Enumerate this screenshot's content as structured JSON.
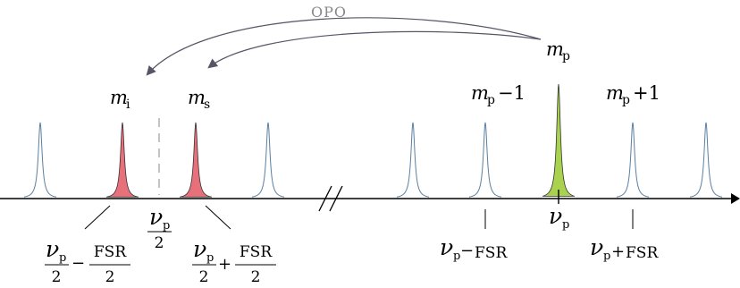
{
  "process_label": "OPO",
  "mode_labels": {
    "pump": "m",
    "pump_sub": "p",
    "idler": "m",
    "idler_sub": "i",
    "signal": "m",
    "signal_sub": "s",
    "pump_minus": "m",
    "pump_minus_sub": "p",
    "pump_minus_suffix": "−1",
    "pump_plus": "m",
    "pump_plus_sub": "p",
    "pump_plus_suffix": "+1"
  },
  "freq_labels": {
    "nu": "ν",
    "p": "p",
    "two": "2",
    "fsr": "FSR",
    "minus": "−",
    "plus": "+"
  },
  "colors": {
    "comb_line": "#5a7fa0",
    "idler_fill": "#e8707a",
    "signal_fill": "#e8707a",
    "pump_fill": "#a9d24f",
    "arrow": "#555566",
    "axis": "#000000"
  }
}
